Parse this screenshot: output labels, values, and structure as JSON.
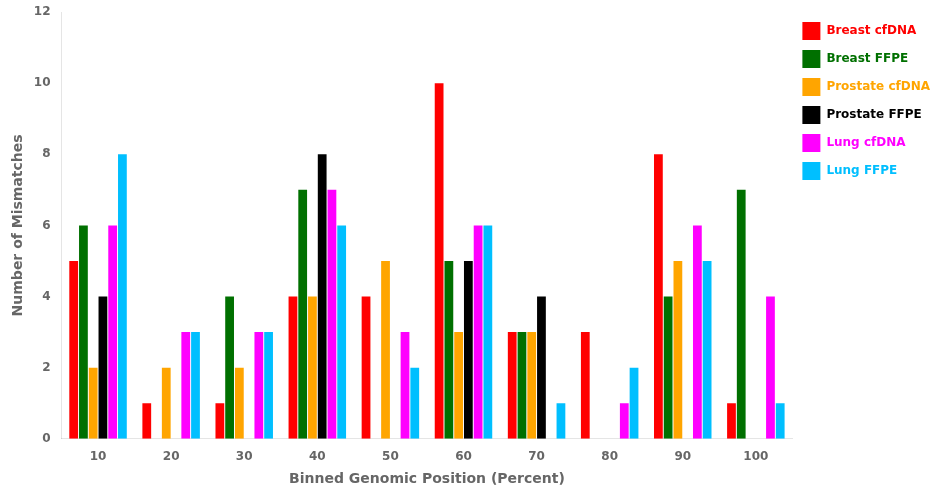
{
  "chart_data": {
    "type": "bar",
    "xlabel": "Binned Genomic Position (Percent)",
    "ylabel": "Number of Mismatches",
    "categories": [
      "10",
      "20",
      "30",
      "40",
      "50",
      "60",
      "70",
      "80",
      "90",
      "100"
    ],
    "series": [
      {
        "name": "Breast cfDNA",
        "color": "#FF0000",
        "values": [
          5,
          1,
          1,
          4,
          4,
          10,
          3,
          3,
          8,
          1
        ]
      },
      {
        "name": "Breast FFPE",
        "color": "#007000",
        "values": [
          6,
          0,
          4,
          7,
          0,
          5,
          3,
          0,
          4,
          7
        ]
      },
      {
        "name": "Prostate cfDNA",
        "color": "#FFA500",
        "values": [
          2,
          2,
          2,
          4,
          5,
          3,
          3,
          0,
          5,
          0
        ]
      },
      {
        "name": "Prostate FFPE",
        "color": "#000000",
        "values": [
          4,
          0,
          0,
          8,
          0,
          5,
          4,
          0,
          0,
          0
        ]
      },
      {
        "name": "Lung cfDNA",
        "color": "#FF00FF",
        "values": [
          6,
          3,
          3,
          7,
          3,
          6,
          0,
          1,
          6,
          4
        ]
      },
      {
        "name": "Lung FFPE",
        "color": "#00BFFF",
        "values": [
          8,
          3,
          3,
          6,
          2,
          6,
          1,
          2,
          5,
          1
        ]
      }
    ],
    "ylim": [
      0,
      12
    ],
    "yticks": [
      0,
      2,
      4,
      6,
      8,
      10,
      12
    ],
    "grid": false,
    "legend": "upper right"
  }
}
